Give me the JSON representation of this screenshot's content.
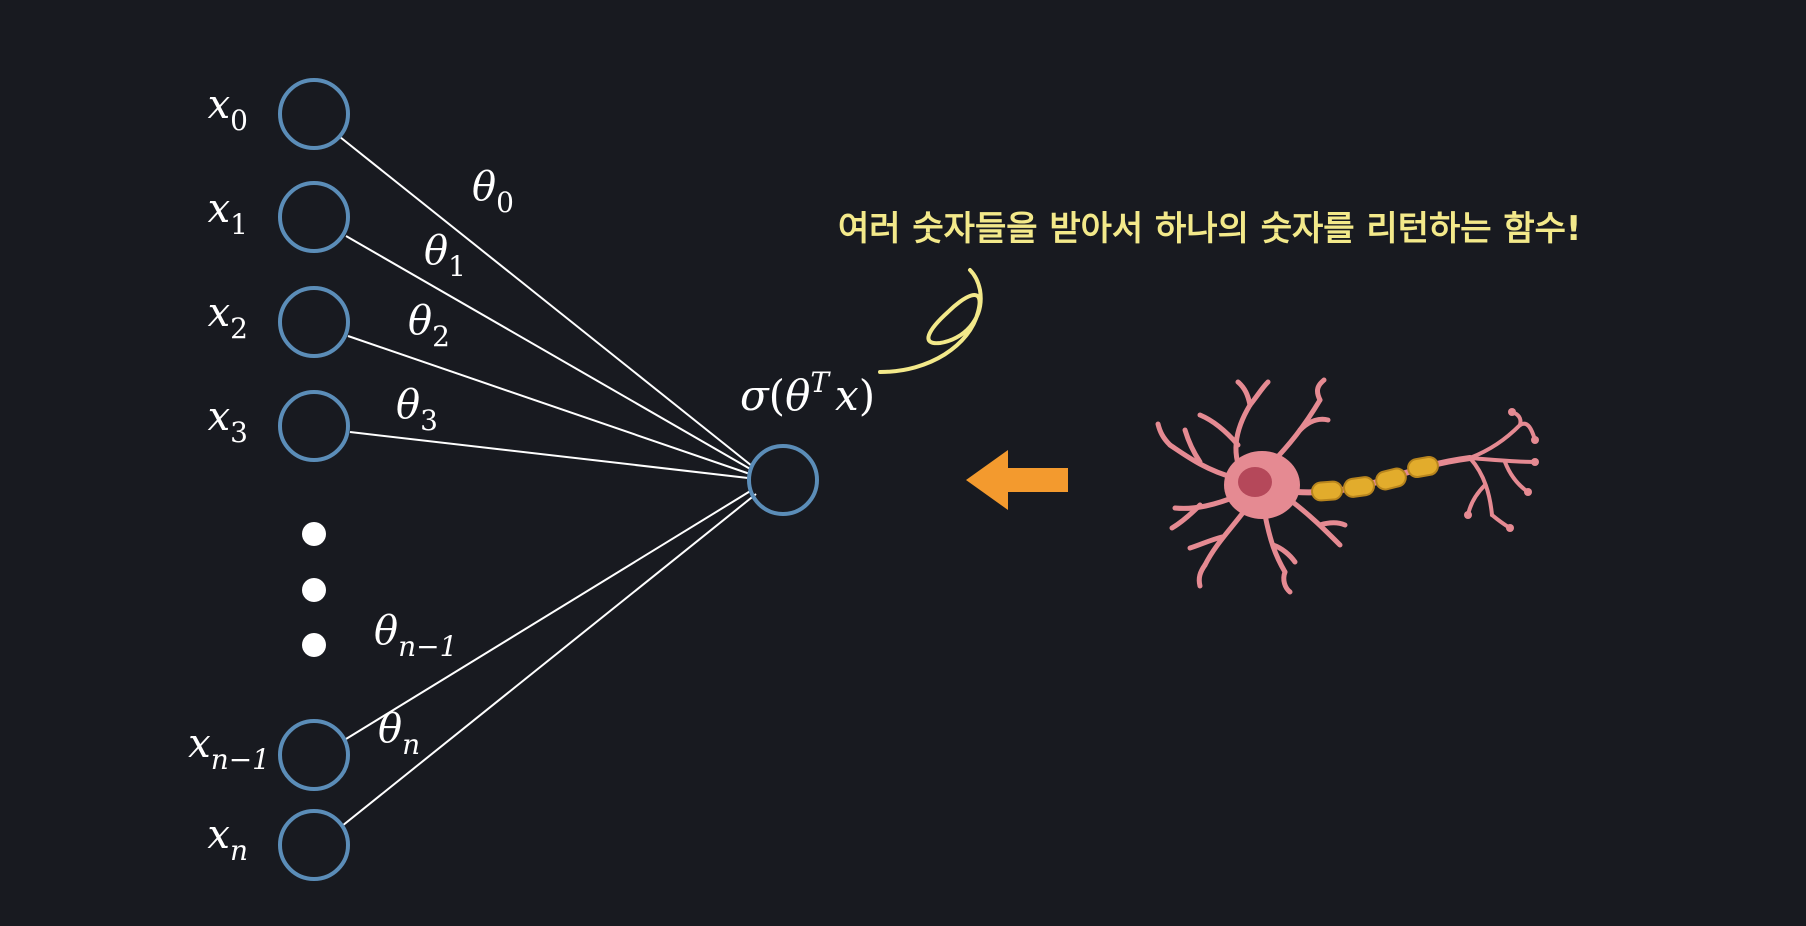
{
  "inputs": [
    {
      "var": "x",
      "sub": "0"
    },
    {
      "var": "x",
      "sub": "1"
    },
    {
      "var": "x",
      "sub": "2"
    },
    {
      "var": "x",
      "sub": "3"
    },
    {
      "var": "x",
      "sub": "n−1"
    },
    {
      "var": "x",
      "sub": "n"
    }
  ],
  "weights": [
    {
      "var": "θ",
      "sub": "0"
    },
    {
      "var": "θ",
      "sub": "1"
    },
    {
      "var": "θ",
      "sub": "2"
    },
    {
      "var": "θ",
      "sub": "3"
    },
    {
      "var": "θ",
      "sub": "n−1"
    },
    {
      "var": "θ",
      "sub": "n"
    }
  ],
  "output": {
    "func": "σ",
    "open": "(",
    "theta": "θ",
    "sup": "T",
    "x": "x",
    "close": ")"
  },
  "annotation": {
    "text": "여러 숫자들을 받아서 하나의 숫자를 리턴하는 함수!"
  },
  "icons": {
    "arrow": "left-arrow-icon",
    "neuron": "neuron-illustration"
  },
  "colors": {
    "background": "#181a20",
    "node_stroke": "#5b8db8",
    "edge": "#ffffff",
    "annotation": "#f3e98a",
    "arrow": "#f39a2e",
    "neuron_body": "#e58a92",
    "myelin": "#e2ac2c"
  }
}
